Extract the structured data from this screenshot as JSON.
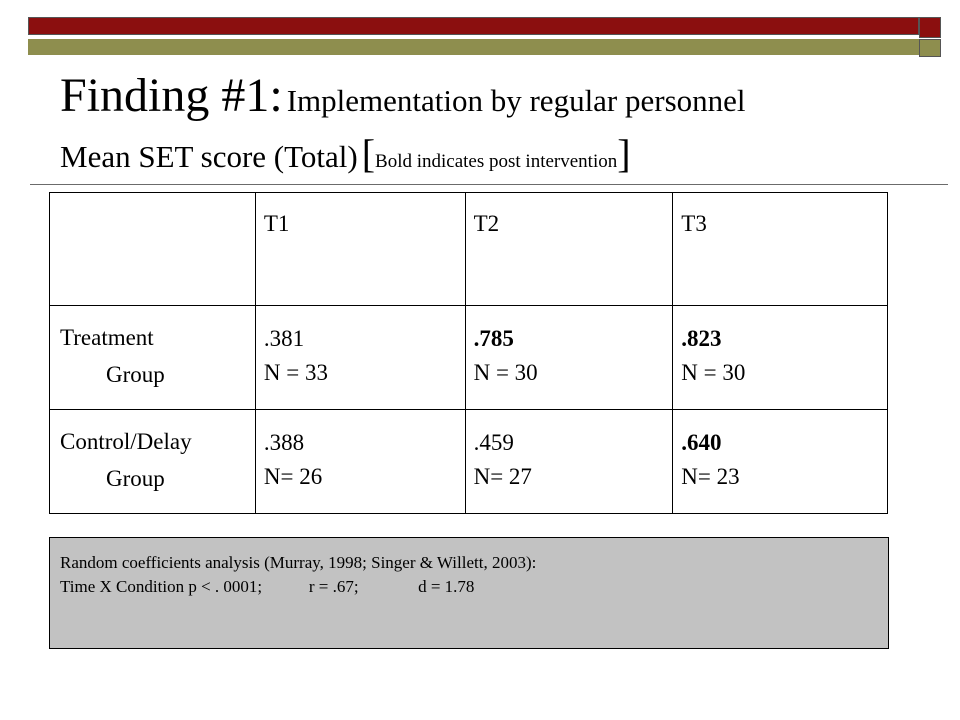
{
  "title": {
    "finding": "Finding #1:",
    "subtitle": "Implementation by regular personnel",
    "line2_main": "Mean SET score (Total)",
    "bracket_open": "[",
    "bracket_note": "Bold indicates post intervention",
    "bracket_close": "]"
  },
  "table": {
    "columns": [
      "",
      "T1",
      "T2",
      "T3"
    ],
    "rows": [
      {
        "label_line1": "Treatment",
        "label_line2": "Group",
        "cells": [
          {
            "value": ".381",
            "n": "N = 33",
            "bold": false
          },
          {
            "value": ".785",
            "n": "N = 30",
            "bold": true
          },
          {
            "value": ".823",
            "n": "N = 30",
            "bold": true
          }
        ]
      },
      {
        "label_line1": "Control/Delay",
        "label_line2": "Group",
        "cells": [
          {
            "value": ".388",
            "n": "N= 26",
            "bold": false
          },
          {
            "value": ".459",
            "n": "N= 27",
            "bold": false
          },
          {
            "value": ".640",
            "n": "N= 23",
            "bold": true
          }
        ]
      }
    ]
  },
  "note": {
    "line1": "Random coefficients analysis (Murray, 1998; Singer & Willett, 2003):",
    "line2": "Time X Condition p < . 0001;           r = .67;              d = 1.78"
  },
  "colors": {
    "bar_red": "#8b0f0f",
    "bar_olive": "#8e8e4e",
    "note_bg": "#c2c2c2"
  }
}
